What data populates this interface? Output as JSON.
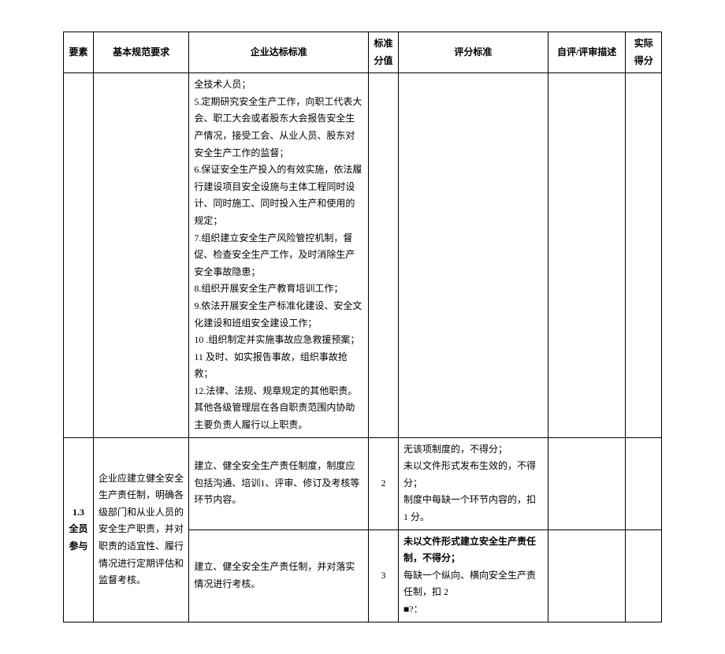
{
  "table": {
    "headers": {
      "element": "要素",
      "basic_req": "基本规范要求",
      "enterprise_standard": "企业达标标准",
      "standard_score": "标准\n分值",
      "criteria": "评分标准",
      "review_desc": "自评/评审描述",
      "actual_score": "实际\n得分"
    },
    "rows": [
      {
        "element": "",
        "basic_req": "",
        "enterprise_standard": "全技术人员；\n5.定期研究安全生产工作，向职工代表大会、职工大会或者股东大会报告安全生产情况，接受工会、从业人员、股东对安全生产工作的监督；\n6.保证安全生产投入的有效实施，依法履行建设项目安全设施与主体工程同时设计、同时施工、同时投入生产和使用的规定；\n7.组织建立安全生产风险管控机制，督促、检查安全生产工作，及时消除生产安全事故隐患；\n8.组织开展安全生产教育培训工作；\n9.依法开展安全生产标准化建设、安全文化建设和班组安全建设工作；\n10        .组织制定并实施事故应急救援预案；\n11 及时、如实报告事故，组织事故抢救；\n12.法律、法规、规章规定的其他职责。\n其他各级管理层在各自职责范围内协助主要负责人履行以上职责。",
        "standard_score": "",
        "criteria": "",
        "review_desc": "",
        "actual_score": ""
      },
      {
        "element": "1.3\n全员\n参与",
        "basic_req": "企业应建立健全安全生产责任制，明确各级部门和从业人员的安全生产职责，并对职责的适宜性、履行情况进行定期评估和监督考核。",
        "enterprise_standard": "建立、健全安全生产责任制度，制度应包括沟通、培训1、评审、修订及考核等环节内容。",
        "standard_score": "2",
        "criteria": "无该项制度的，不得分；\n未以文件形式发布生效的，不得分；\n制度中每缺一个环节内容的，扣 1 分。",
        "review_desc": "",
        "actual_score": ""
      },
      {
        "element_rowspan": true,
        "basic_req_rowspan": true,
        "enterprise_standard": "建立、健全安全生产责任制，并对落实情况进行考核。",
        "standard_score": "3",
        "criteria_bold_part": "未以文件形式建立安全生产责任制，不得分；",
        "criteria_rest": "每缺一个纵向、横向安全生产责任制，扣 2\n■?：",
        "review_desc": "",
        "actual_score": ""
      }
    ]
  }
}
